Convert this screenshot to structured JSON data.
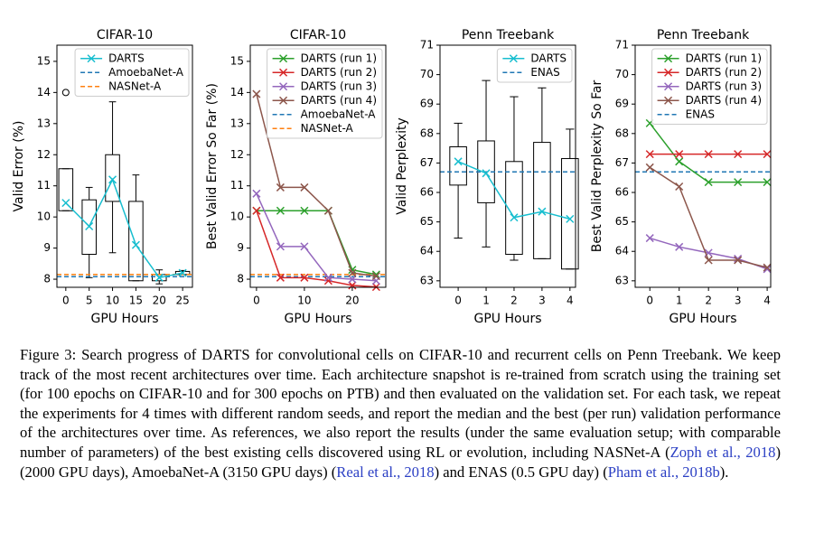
{
  "chart_data": [
    {
      "type": "box",
      "title": "CIFAR-10",
      "xlabel": "GPU Hours",
      "ylabel": "Valid Error (%)",
      "x": [
        0,
        5,
        10,
        15,
        20,
        25
      ],
      "boxes": {
        "whislo": [
          10.2,
          8.05,
          8.85,
          7.95,
          7.85,
          8.15
        ],
        "q1": [
          10.2,
          8.8,
          10.5,
          7.95,
          7.95,
          8.15
        ],
        "q3": [
          11.55,
          10.55,
          12.0,
          10.5,
          8.15,
          8.25
        ],
        "whishi": [
          11.55,
          10.95,
          13.7,
          11.35,
          8.3,
          8.28
        ]
      },
      "outliers": [
        {
          "x": 0,
          "value": 14.0
        }
      ],
      "series": [
        {
          "name": "DARTS",
          "color": "#17becf",
          "values": [
            10.45,
            9.7,
            11.2,
            9.1,
            8.05,
            8.2
          ]
        }
      ],
      "hlines": [
        {
          "name": "AmoebaNet-A",
          "color": "#1f77b4",
          "value": 8.08
        },
        {
          "name": "NASNet-A",
          "color": "#ff7f0e",
          "value": 8.15
        }
      ],
      "xlim": [
        -1.9,
        27.1
      ],
      "ylim": [
        7.74,
        15.52
      ],
      "xticks": [
        0,
        5,
        10,
        15,
        20,
        25
      ],
      "yticks": [
        8,
        9,
        10,
        11,
        12,
        13,
        14,
        15
      ],
      "legend": "upper right"
    },
    {
      "type": "line",
      "title": "CIFAR-10",
      "xlabel": "GPU Hours",
      "ylabel": "Best Valid Error So Far (%)",
      "x": [
        0,
        5,
        10,
        15,
        20,
        25
      ],
      "series": [
        {
          "name": "DARTS (run 1)",
          "color": "#2ca02c",
          "values": [
            10.2,
            10.2,
            10.2,
            10.2,
            8.3,
            8.15
          ]
        },
        {
          "name": "DARTS (run 2)",
          "color": "#d62728",
          "values": [
            10.2,
            8.05,
            8.05,
            7.95,
            7.8,
            7.75
          ]
        },
        {
          "name": "DARTS (run 3)",
          "color": "#9467bd",
          "values": [
            10.75,
            9.05,
            9.05,
            8.05,
            8.0,
            7.95
          ]
        },
        {
          "name": "DARTS (run 4)",
          "color": "#8c564b",
          "values": [
            13.95,
            10.95,
            10.95,
            10.2,
            8.2,
            8.1
          ]
        }
      ],
      "hlines": [
        {
          "name": "AmoebaNet-A",
          "color": "#1f77b4",
          "value": 8.08
        },
        {
          "name": "NASNet-A",
          "color": "#ff7f0e",
          "value": 8.15
        }
      ],
      "xlim": [
        -1.3,
        27.0
      ],
      "ylim": [
        7.74,
        15.52
      ],
      "xticks": [
        0,
        10,
        20
      ],
      "yticks": [
        8,
        9,
        10,
        11,
        12,
        13,
        14,
        15
      ],
      "legend": "upper right"
    },
    {
      "type": "box",
      "title": "Penn Treebank",
      "xlabel": "GPU Hours",
      "ylabel": "Valid Perplexity",
      "x": [
        0,
        1,
        2,
        3,
        4
      ],
      "boxes": {
        "whislo": [
          64.45,
          64.15,
          63.7,
          63.75,
          63.4
        ],
        "q1": [
          66.25,
          65.65,
          63.9,
          63.75,
          63.4
        ],
        "q3": [
          67.55,
          67.75,
          67.05,
          67.7,
          67.15
        ],
        "whishi": [
          68.35,
          69.8,
          69.25,
          69.55,
          68.15
        ]
      },
      "outliers": [],
      "series": [
        {
          "name": "DARTS",
          "color": "#17becf",
          "values": [
            67.05,
            66.65,
            65.15,
            65.35,
            65.1
          ]
        }
      ],
      "hlines": [
        {
          "name": "ENAS",
          "color": "#1f77b4",
          "value": 66.7
        }
      ],
      "xlim": [
        -0.65,
        4.2
      ],
      "ylim": [
        62.78,
        71.0
      ],
      "xticks": [
        0,
        1,
        2,
        3,
        4
      ],
      "yticks": [
        63,
        64,
        65,
        66,
        67,
        68,
        69,
        70,
        71
      ],
      "legend": "upper right"
    },
    {
      "type": "line",
      "title": "Penn Treebank",
      "xlabel": "GPU Hours",
      "ylabel": "Best Valid Perplexity So Far",
      "x": [
        0,
        1,
        2,
        3,
        4
      ],
      "series": [
        {
          "name": "DARTS (run 1)",
          "color": "#2ca02c",
          "values": [
            68.35,
            67.05,
            66.35,
            66.35,
            66.35
          ]
        },
        {
          "name": "DARTS (run 2)",
          "color": "#d62728",
          "values": [
            67.3,
            67.3,
            67.3,
            67.3,
            67.3
          ]
        },
        {
          "name": "DARTS (run 3)",
          "color": "#9467bd",
          "values": [
            64.45,
            64.15,
            63.95,
            63.75,
            63.4
          ]
        },
        {
          "name": "DARTS (run 4)",
          "color": "#8c564b",
          "values": [
            66.85,
            66.2,
            63.7,
            63.7,
            63.45
          ]
        }
      ],
      "hlines": [
        {
          "name": "ENAS",
          "color": "#1f77b4",
          "value": 66.7
        }
      ],
      "xlim": [
        -0.5,
        4.12
      ],
      "ylim": [
        62.78,
        71.0
      ],
      "xticks": [
        0,
        1,
        2,
        3,
        4
      ],
      "yticks": [
        63,
        64,
        65,
        66,
        67,
        68,
        69,
        70,
        71
      ],
      "legend": "upper right"
    }
  ],
  "caption": [
    {
      "text": "Figure 3: Search progress of DARTS for convolutional cells on CIFAR-10 and recurrent cells on Penn Treebank. We keep track of the most recent architectures over time. Each architecture snapshot is re-trained from scratch using the training set (for 100 epochs on CIFAR-10 and for 300 epochs on PTB) and then evaluated on the validation set. For each task, we repeat the experiments for 4 times with different random seeds, and report the median and the best (per run) validation performance of the architectures over time. As references, we also report the results (under the same evaluation setup; with comparable number of parameters) of the best existing cells discovered using RL or evolution, including NASNet-A ("
    },
    {
      "text": "Zoph et al., 2018",
      "color": "#2b3fc4"
    },
    {
      "text": ") (2000 GPU days), AmoebaNet-A (3150 GPU days) ("
    },
    {
      "text": "Real et al., 2018",
      "color": "#2b3fc4"
    },
    {
      "text": ") and ENAS (0.5 GPU day) ("
    },
    {
      "text": "Pham et al., 2018b",
      "color": "#2b3fc4"
    },
    {
      "text": ")."
    }
  ]
}
